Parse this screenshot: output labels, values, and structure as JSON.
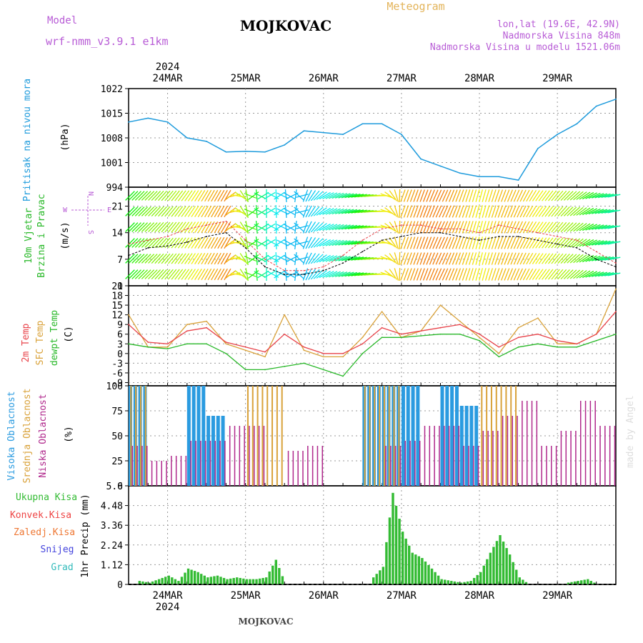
{
  "header": {
    "station": "MOJKOVAC",
    "product": "Meteogram",
    "model_label": "Model",
    "model_name": "wrf-nmm_v3.9.1  e1km",
    "coords": "lon,lat (19.6E, 42.9N)",
    "altitude": "Nadmorska Visina 848m",
    "model_altitude": "Nadmorska Visina u modelu 1521.06m",
    "footer_station": "MOJKOVAC",
    "credit": "made by Angel"
  },
  "colors": {
    "pressure": "#1e9bdc",
    "temp2m": "#e8434a",
    "sfc_temp": "#d9a23a",
    "dewpoint": "#28b828",
    "cloud_high": "#2a9be0",
    "cloud_mid": "#d9a23a",
    "cloud_low": "#b0288c",
    "precip_total": "#33bb33",
    "precip_conv": "#ee4444",
    "precip_frozen": "#ee7733",
    "precip_snow": "#4444dd",
    "precip_hail": "#33bbbb",
    "label_purple": "#b85cd6",
    "label_orange": "#e3b45a",
    "wind_compass": "#b85cd6"
  },
  "chart_data": [
    {
      "type": "line",
      "name": "pressure",
      "title": "Pritisak na nivou mora",
      "ylabel": "(hPa)",
      "ylim": [
        994,
        1022
      ],
      "yticks": [
        994,
        1001,
        1008,
        1015,
        1022
      ],
      "x_day_ticks": [
        "24MAR",
        "25MAR",
        "26MAR",
        "27MAR",
        "28MAR",
        "29MAR"
      ],
      "x_year": "2024",
      "x_hours": [
        0,
        6,
        12,
        18,
        24,
        30,
        36,
        42,
        48,
        54,
        60,
        66,
        72,
        78,
        84,
        90,
        96,
        102,
        108,
        114,
        120,
        126,
        132,
        138,
        144,
        150
      ],
      "series": [
        {
          "values": [
            1012.5,
            1013.6,
            1012.5,
            1008,
            1007,
            1004,
            1004.2,
            1004,
            1006,
            1010,
            1009.5,
            1009,
            1012,
            1012,
            1009,
            1002,
            1000,
            998,
            997,
            997,
            996,
            1005,
            1009,
            1012,
            1017,
            1019
          ]
        }
      ]
    },
    {
      "type": "line",
      "name": "wind",
      "title": "10m Vjetar Brzina i Pravac",
      "ylabel": "(m/s)",
      "ylim": [
        0,
        26
      ],
      "yticks": [
        0,
        7,
        14,
        21
      ],
      "compass": {
        "n": "N",
        "s": "S",
        "w": "W",
        "e": "E"
      },
      "x_hours": [
        0,
        6,
        12,
        18,
        24,
        30,
        36,
        42,
        48,
        54,
        60,
        66,
        72,
        78,
        84,
        90,
        96,
        102,
        108,
        114,
        120,
        126,
        132,
        138,
        144,
        150
      ],
      "series": [
        {
          "name": "speed",
          "values": [
            8,
            10,
            10.5,
            11.5,
            13,
            14,
            10,
            5,
            3,
            3,
            4,
            6,
            9,
            12,
            13,
            14,
            14,
            13,
            12,
            13,
            13,
            12,
            11,
            10,
            7,
            5
          ]
        },
        {
          "name": "gust",
          "values": [
            11,
            12,
            13,
            15,
            16,
            17,
            12,
            7,
            4,
            4,
            5,
            8,
            12,
            15,
            16,
            16,
            15,
            15,
            14,
            16,
            15,
            14,
            13,
            12,
            9,
            6
          ]
        }
      ],
      "direction_deg": [
        225,
        225,
        220,
        215,
        210,
        210,
        350,
        0,
        355,
        20,
        60,
        70,
        80,
        90,
        200,
        200,
        205,
        200,
        195,
        200,
        205,
        215,
        220,
        230,
        250,
        260
      ]
    },
    {
      "type": "line",
      "name": "temperature",
      "title": "2m Temp",
      "ylabel": "(C)",
      "ylim": [
        -10,
        21
      ],
      "yticks": [
        -9,
        -6,
        -3,
        0,
        3,
        6,
        9,
        12,
        15,
        18,
        21
      ],
      "legend": [
        "2m Temp",
        "SFC Temp",
        "dewpt Temp"
      ],
      "x_hours": [
        0,
        6,
        12,
        18,
        24,
        30,
        36,
        42,
        48,
        54,
        60,
        66,
        72,
        78,
        84,
        90,
        96,
        102,
        108,
        114,
        120,
        126,
        132,
        138,
        144,
        150
      ],
      "series": [
        {
          "name": "2m Temp",
          "values": [
            9,
            3.5,
            3,
            7,
            8,
            3.5,
            2,
            0.5,
            6,
            2,
            0,
            0,
            3,
            8,
            6,
            7,
            8,
            9,
            6,
            2,
            5,
            6,
            4,
            3,
            6,
            13
          ]
        },
        {
          "name": "SFC Temp",
          "values": [
            12,
            2,
            2,
            9,
            10,
            3,
            1,
            -1,
            12,
            1,
            -1,
            -1,
            5,
            13,
            5,
            7,
            15,
            10,
            5,
            0,
            8,
            11,
            3,
            3,
            6,
            20
          ]
        },
        {
          "name": "dewpt Temp",
          "values": [
            3,
            2,
            1.5,
            3,
            3,
            0,
            -5,
            -5,
            -4,
            -3,
            -5,
            -7,
            0,
            5,
            5,
            5.5,
            6,
            6,
            4,
            -1,
            2,
            3,
            2,
            2,
            4,
            6
          ]
        }
      ]
    },
    {
      "type": "bar",
      "name": "cloud",
      "title": "Oblacnost",
      "ylabel": "(%)",
      "ylim": [
        0,
        100
      ],
      "yticks": [
        0,
        25,
        50,
        75,
        100
      ],
      "legend": [
        "Visoka Oblacnost",
        "Srednja Oblacnost",
        "Niska Oblacnost"
      ],
      "x_hours": [
        0,
        6,
        12,
        18,
        24,
        30,
        36,
        42,
        48,
        54,
        60,
        66,
        72,
        78,
        84,
        90,
        96,
        102,
        108,
        114,
        120,
        126,
        132,
        138,
        144,
        150
      ],
      "series": [
        {
          "name": "Visoka Oblacnost",
          "values": [
            100,
            0,
            0,
            100,
            70,
            0,
            0,
            0,
            0,
            0,
            0,
            0,
            100,
            100,
            100,
            0,
            100,
            80,
            0,
            0,
            0,
            0,
            0,
            0,
            0,
            0
          ]
        },
        {
          "name": "Srednja Oblacnost",
          "values": [
            100,
            0,
            0,
            0,
            0,
            0,
            100,
            100,
            0,
            0,
            0,
            0,
            100,
            100,
            0,
            0,
            0,
            0,
            100,
            100,
            0,
            0,
            0,
            0,
            0,
            0
          ]
        },
        {
          "name": "Niska Oblacnost",
          "values": [
            40,
            25,
            30,
            45,
            45,
            60,
            60,
            0,
            35,
            40,
            0,
            0,
            0,
            40,
            45,
            60,
            60,
            40,
            55,
            70,
            85,
            40,
            55,
            85,
            60,
            0
          ]
        }
      ]
    },
    {
      "type": "bar",
      "name": "precip",
      "title": "1hr Precip",
      "ylabel": "1hr Precip (mm)",
      "ylim": [
        0,
        5.6
      ],
      "yticks": [
        0,
        1.12,
        2.24,
        3.36,
        4.48,
        5.6
      ],
      "legend": [
        "Ukupna Kisa",
        "Konvek.Kisa",
        "Zaledj.Kisa",
        "Snijeg",
        "Grad"
      ],
      "x_hours": [
        0,
        3,
        6,
        9,
        12,
        15,
        18,
        21,
        24,
        27,
        30,
        33,
        36,
        39,
        42,
        45,
        48,
        51,
        54,
        57,
        60,
        63,
        66,
        69,
        72,
        75,
        78,
        81,
        84,
        87,
        90,
        93,
        96,
        99,
        102,
        105,
        108,
        111,
        114,
        117,
        120,
        123,
        126,
        129,
        132,
        135,
        138,
        141,
        144,
        147,
        150
      ],
      "series": [
        {
          "name": "Ukupna Kisa",
          "values": [
            0,
            0.2,
            0.1,
            0.3,
            0.5,
            0.2,
            0.9,
            0.7,
            0.4,
            0.5,
            0.3,
            0.4,
            0.3,
            0.3,
            0.4,
            1.4,
            0,
            0,
            0,
            0,
            0,
            0,
            0,
            0,
            0,
            0.4,
            1.0,
            5.2,
            3.0,
            1.8,
            1.5,
            0.9,
            0.3,
            0.2,
            0.1,
            0.2,
            0.7,
            1.8,
            2.8,
            1.7,
            0.4,
            0,
            0,
            0,
            0,
            0.1,
            0.2,
            0.3,
            0,
            0,
            0
          ]
        }
      ]
    }
  ]
}
